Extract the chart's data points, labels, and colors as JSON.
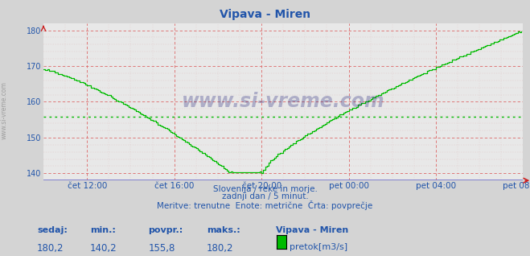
{
  "title": "Vipava - Miren",
  "bg_color": "#d4d4d4",
  "plot_bg_color": "#e8e8e8",
  "line_color": "#00bb00",
  "avg_line_color": "#00cc00",
  "avg_value": 155.8,
  "y_min": 138,
  "y_max": 182,
  "y_ticks": [
    140,
    150,
    160,
    170,
    180
  ],
  "x_tick_labels": [
    "čet 12:00",
    "čet 16:00",
    "čet 20:00",
    "pet 00:00",
    "pet 04:00",
    "pet 08:00"
  ],
  "x_tick_hours": [
    2,
    6,
    10,
    14,
    18,
    22
  ],
  "x_total_hours": 22,
  "subtitle1": "Slovenija / reke in morje.",
  "subtitle2": "zadnji dan / 5 minut.",
  "subtitle3": "Meritve: trenutne  Enote: metrične  Črta: povprečje",
  "label_sedaj": "sedaj:",
  "label_min": "min.:",
  "label_povpr": "povpr.:",
  "label_maks": "maks.:",
  "val_sedaj": "180,2",
  "val_min": "140,2",
  "val_povpr": "155,8",
  "val_maks": "180,2",
  "station_name": "Vipava - Miren",
  "legend_label": "pretok[m3/s]",
  "text_color_blue": "#2255aa",
  "grid_color": "#dd6666",
  "grid_minor_color": "#ddaaaa",
  "border_bottom_color": "#7777cc",
  "watermark": "www.si-vreme.com",
  "left_watermark": "www.si-vreme.com"
}
